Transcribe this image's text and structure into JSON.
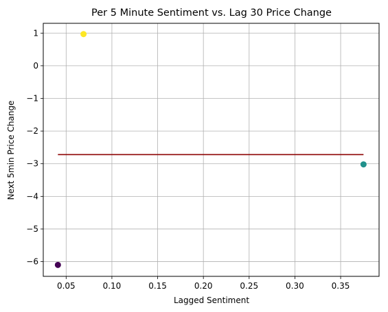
{
  "chart_data": {
    "type": "scatter",
    "title": "Per 5 Minute Sentiment vs. Lag 30 Price Change",
    "xlabel": "Lagged Sentiment",
    "ylabel": "Next 5min Price Change",
    "xlim": [
      0.025,
      0.392
    ],
    "ylim": [
      -6.45,
      1.3
    ],
    "xticks": [
      0.05,
      0.1,
      0.15,
      0.2,
      0.25,
      0.3,
      0.35
    ],
    "xtick_labels": [
      "0.05",
      "0.10",
      "0.15",
      "0.20",
      "0.25",
      "0.30",
      "0.35"
    ],
    "yticks": [
      1,
      0,
      -1,
      -2,
      -3,
      -4,
      -5,
      -6
    ],
    "ytick_labels": [
      "1",
      "0",
      "−1",
      "−2",
      "−3",
      "−4",
      "−5",
      "−6"
    ],
    "grid": true,
    "points": [
      {
        "x": 0.041,
        "y": -6.1,
        "color": "#440154"
      },
      {
        "x": 0.069,
        "y": 0.97,
        "color": "#fde725"
      },
      {
        "x": 0.375,
        "y": -3.02,
        "color": "#21918c"
      }
    ],
    "trendline": {
      "x": [
        0.041,
        0.375
      ],
      "y": [
        -2.72,
        -2.72
      ],
      "color": "#8b0000"
    }
  }
}
